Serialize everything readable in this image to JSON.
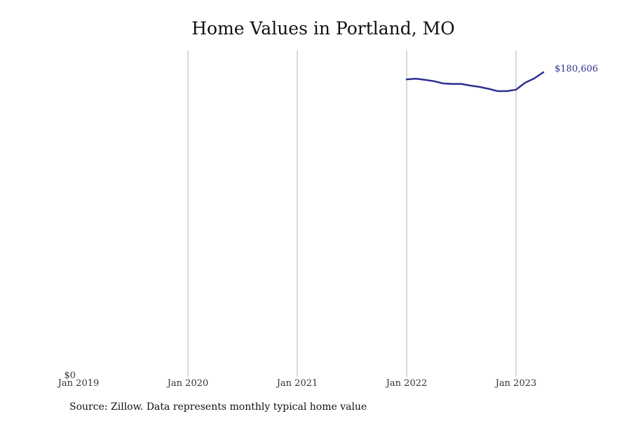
{
  "chart_data": {
    "type": "line",
    "title": "Home Values in Portland, MO",
    "xlabel": "",
    "ylabel": "",
    "source": "Source: Zillow. Data represents monthly typical home value",
    "x_ticks": [
      {
        "label": "Jan 2019",
        "date": "2019-01"
      },
      {
        "label": "Jan 2020",
        "date": "2020-01"
      },
      {
        "label": "Jan 2021",
        "date": "2021-01"
      },
      {
        "label": "Jan 2022",
        "date": "2022-01"
      },
      {
        "label": "Jan 2023",
        "date": "2023-01"
      }
    ],
    "y_ticks": [
      {
        "label": "$0",
        "value": 0
      }
    ],
    "xlim": [
      "2019-01",
      "2023-11"
    ],
    "ylim": [
      0,
      193500
    ],
    "grid": {
      "vertical": true,
      "horizontal": false
    },
    "series": [
      {
        "color": "#2e3192",
        "end_label": "$180,606",
        "points": [
          {
            "date": "2022-01",
            "value": 176400
          },
          {
            "date": "2022-02",
            "value": 176800
          },
          {
            "date": "2022-03",
            "value": 176100
          },
          {
            "date": "2022-04",
            "value": 175300
          },
          {
            "date": "2022-05",
            "value": 174000
          },
          {
            "date": "2022-06",
            "value": 173700
          },
          {
            "date": "2022-07",
            "value": 173700
          },
          {
            "date": "2022-08",
            "value": 172700
          },
          {
            "date": "2022-09",
            "value": 171900
          },
          {
            "date": "2022-10",
            "value": 170800
          },
          {
            "date": "2022-11",
            "value": 169400
          },
          {
            "date": "2022-12",
            "value": 169400
          },
          {
            "date": "2023-01",
            "value": 170300
          },
          {
            "date": "2023-02",
            "value": 174400
          },
          {
            "date": "2023-03",
            "value": 177000
          },
          {
            "date": "2023-04",
            "value": 180606
          }
        ]
      }
    ]
  }
}
